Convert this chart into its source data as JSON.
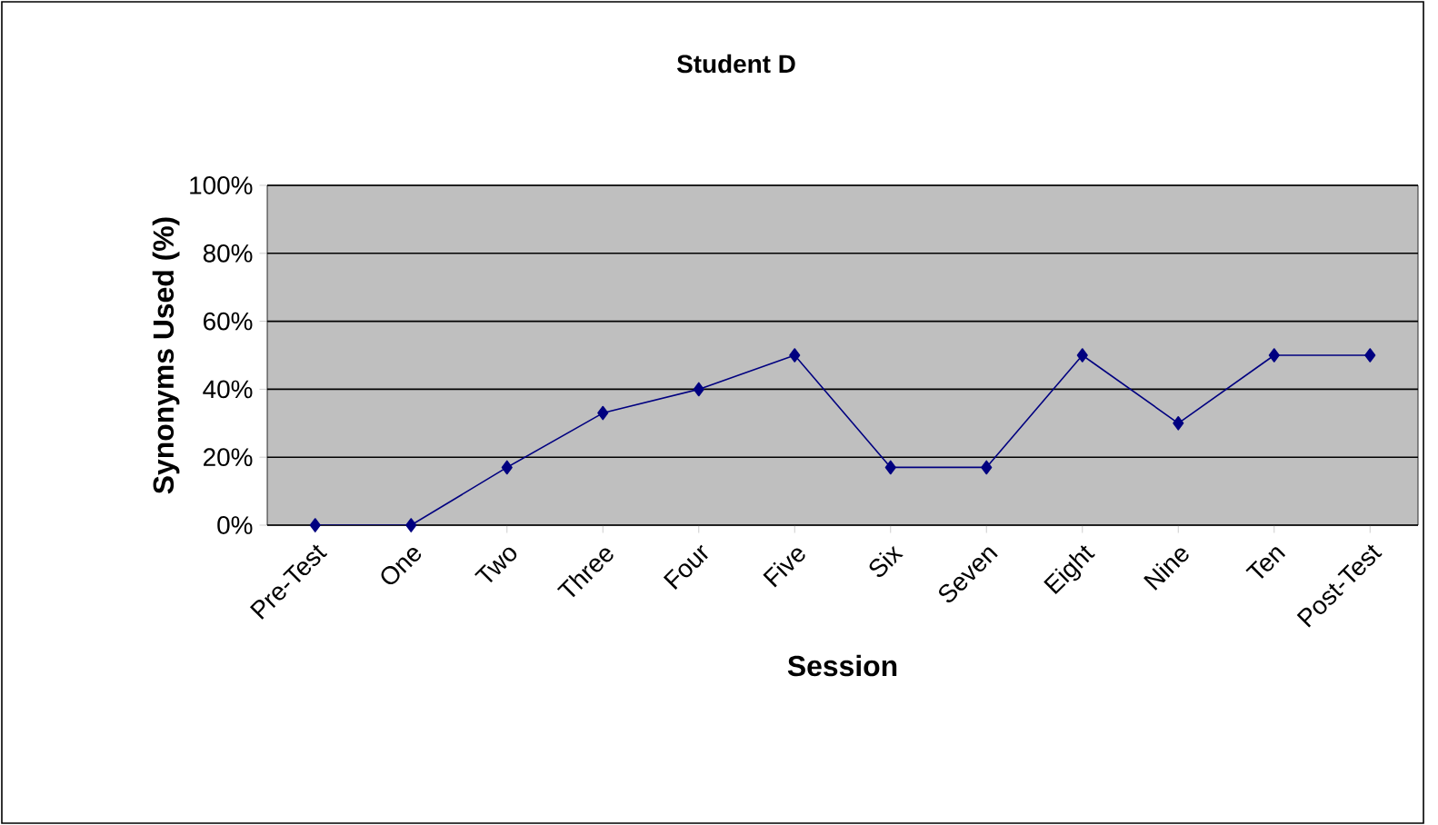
{
  "chart_data": {
    "type": "line",
    "title": "Student D",
    "xlabel": "Session",
    "ylabel": "Synonyms Used (%)",
    "categories": [
      "Pre-Test",
      "One",
      "Two",
      "Three",
      "Four",
      "Five",
      "Six",
      "Seven",
      "Eight",
      "Nine",
      "Ten",
      "Post-Test"
    ],
    "series": [
      {
        "color": "#000080",
        "values": [
          0,
          0,
          17,
          33,
          40,
          50,
          17,
          17,
          50,
          30,
          50,
          50
        ]
      }
    ],
    "ylim": [
      0,
      100
    ],
    "yticks": [
      {
        "value": 0,
        "label": "0%"
      },
      {
        "value": 20,
        "label": "20%"
      },
      {
        "value": 40,
        "label": "40%"
      },
      {
        "value": 60,
        "label": "60%"
      },
      {
        "value": 80,
        "label": "80%"
      },
      {
        "value": 100,
        "label": "100%"
      }
    ],
    "grid": "y",
    "marker": "diamond",
    "line_style": "solid"
  }
}
